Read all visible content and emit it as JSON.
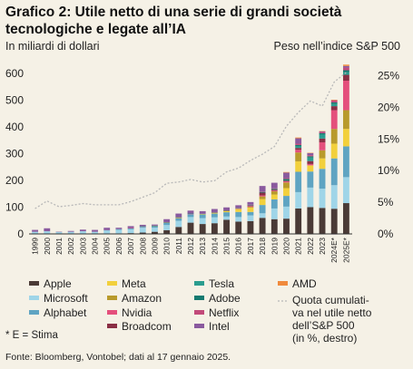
{
  "title": "Grafico 2: Utile netto di una serie di grandi società tecnologiche e legate all’IA",
  "note": "* E = Stima",
  "source": "Fonte: Bloomberg, Vontobel; dati al 17 gennaio 2025.",
  "chart_data": {
    "type": "bar",
    "stacked": true,
    "ylabel": "In miliardi di dollari",
    "ylabel_right": "Peso nell’indice S&P 500",
    "ylim": [
      0,
      650
    ],
    "yticks": [
      0,
      100,
      200,
      300,
      400,
      500,
      600
    ],
    "ylim_right": [
      0,
      27.5
    ],
    "yticks_right": [
      "0%",
      "5%",
      "10%",
      "15%",
      "20%",
      "25%"
    ],
    "yticks_right_values": [
      0,
      5,
      10,
      15,
      20,
      25
    ],
    "grid": false,
    "legend_position": "bottom",
    "categories": [
      "1999",
      "2000",
      "2001",
      "2002",
      "2003",
      "2004",
      "2005",
      "2006",
      "2007",
      "2008",
      "2009",
      "2010",
      "2011",
      "2012",
      "2013",
      "2014",
      "2015",
      "2016",
      "2017",
      "2018",
      "2019",
      "2020",
      "2021",
      "2022",
      "2023",
      "2024E*",
      "2025E*"
    ],
    "series": [
      {
        "name": "Apple",
        "color": "#4a3a36",
        "values": [
          1,
          1,
          0,
          0,
          0,
          0,
          1,
          2,
          3,
          5,
          8,
          14,
          26,
          42,
          37,
          40,
          53,
          46,
          48,
          60,
          55,
          57,
          95,
          100,
          97,
          94,
          115
        ]
      },
      {
        "name": "Microsoft",
        "color": "#9fd5e8",
        "values": [
          7,
          9,
          7,
          8,
          10,
          8,
          12,
          13,
          14,
          18,
          15,
          19,
          23,
          21,
          22,
          22,
          12,
          17,
          21,
          17,
          40,
          45,
          61,
          73,
          72,
          88,
          97
        ]
      },
      {
        "name": "Alphabet",
        "color": "#5fa4c2",
        "values": [
          0,
          0,
          0,
          0,
          0,
          0,
          1,
          3,
          4,
          4,
          6,
          8,
          10,
          11,
          13,
          14,
          16,
          19,
          13,
          31,
          34,
          40,
          76,
          60,
          74,
          100,
          115
        ]
      },
      {
        "name": "Meta",
        "color": "#f2d03c",
        "values": [
          0,
          0,
          0,
          0,
          0,
          0,
          0,
          0,
          0,
          0,
          0,
          0,
          1,
          0,
          2,
          3,
          4,
          10,
          16,
          22,
          18,
          29,
          39,
          23,
          39,
          55,
          65
        ]
      },
      {
        "name": "Amazon",
        "color": "#b89a2c",
        "values": [
          0,
          0,
          0,
          0,
          0,
          0,
          0,
          0,
          0,
          0,
          1,
          1,
          1,
          0,
          0,
          0,
          1,
          2,
          3,
          10,
          12,
          21,
          33,
          0,
          30,
          55,
          70
        ]
      },
      {
        "name": "Nvidia",
        "color": "#e44f7c",
        "values": [
          0,
          0,
          0,
          0,
          0,
          0,
          0,
          0,
          1,
          1,
          0,
          0,
          1,
          1,
          0,
          1,
          1,
          2,
          3,
          4,
          3,
          4,
          10,
          5,
          30,
          70,
          110
        ]
      },
      {
        "name": "Broadcom",
        "color": "#8a2f45",
        "values": [
          0,
          0,
          0,
          0,
          0,
          0,
          0,
          0,
          0,
          0,
          0,
          0,
          0,
          0,
          0,
          0,
          0,
          0,
          2,
          10,
          3,
          3,
          7,
          11,
          14,
          15,
          22
        ]
      },
      {
        "name": "Tesla",
        "color": "#2a9d8f",
        "values": [
          0,
          0,
          0,
          0,
          0,
          0,
          0,
          0,
          0,
          0,
          0,
          0,
          0,
          0,
          0,
          0,
          0,
          0,
          0,
          0,
          0,
          1,
          6,
          13,
          15,
          8,
          10
        ]
      },
      {
        "name": "Adobe",
        "color": "#147a70",
        "values": [
          0,
          0,
          0,
          0,
          0,
          0,
          0,
          0,
          0,
          1,
          1,
          1,
          1,
          1,
          1,
          1,
          1,
          1,
          2,
          3,
          3,
          5,
          5,
          5,
          5,
          6,
          7
        ]
      },
      {
        "name": "Netflix",
        "color": "#c24a7a",
        "values": [
          0,
          0,
          0,
          0,
          0,
          0,
          0,
          0,
          0,
          0,
          0,
          0,
          0,
          0,
          0,
          0,
          0,
          0,
          1,
          1,
          2,
          3,
          5,
          4,
          5,
          8,
          10
        ]
      },
      {
        "name": "Intel",
        "color": "#8a5a9e",
        "values": [
          7,
          11,
          1,
          3,
          6,
          7,
          9,
          5,
          7,
          5,
          4,
          12,
          13,
          11,
          10,
          12,
          11,
          10,
          10,
          21,
          21,
          21,
          20,
          8,
          2,
          -2,
          6
        ]
      },
      {
        "name": "AMD",
        "color": "#f08a3c",
        "values": [
          0,
          0,
          0,
          0,
          0,
          0,
          0,
          0,
          0,
          0,
          0,
          0,
          0,
          0,
          0,
          0,
          0,
          0,
          0,
          0,
          0,
          2,
          3,
          1,
          1,
          2,
          5
        ]
      }
    ],
    "line": {
      "name": "Quota cumulativa nel utile netto dell’S&P 500 (in %, destro)",
      "color": "#b8b8b8",
      "x": [
        "1999",
        "2000",
        "2001",
        "2002",
        "2003",
        "2004",
        "2005",
        "2006",
        "2007",
        "2008",
        "2009",
        "2010",
        "2011",
        "2012",
        "2013",
        "2014",
        "2015",
        "2016",
        "2017",
        "2018",
        "2019",
        "2020",
        "2021",
        "2022",
        "2023",
        "2024E*",
        "2025E*"
      ],
      "values": [
        4.0,
        5.2,
        4.3,
        4.5,
        4.8,
        4.6,
        4.6,
        4.6,
        5.1,
        5.8,
        6.5,
        8.0,
        8.2,
        8.6,
        8.2,
        8.4,
        9.8,
        10.4,
        11.6,
        12.6,
        13.8,
        17.0,
        19.2,
        21.0,
        20.2,
        24.0,
        25.5
      ]
    }
  },
  "legend": {
    "col1": [
      "Apple",
      "Microsoft",
      "Alphabet"
    ],
    "col2": [
      "Meta",
      "Amazon",
      "Nvidia",
      "Broadcom"
    ],
    "col3": [
      "Tesla",
      "Adobe",
      "Netflix",
      "Intel"
    ],
    "col4": [
      "AMD"
    ],
    "line_label_lines": [
      "Quota cumulati-",
      "va nel utile netto",
      "dell’S&P 500",
      "(in %, destro)"
    ]
  }
}
